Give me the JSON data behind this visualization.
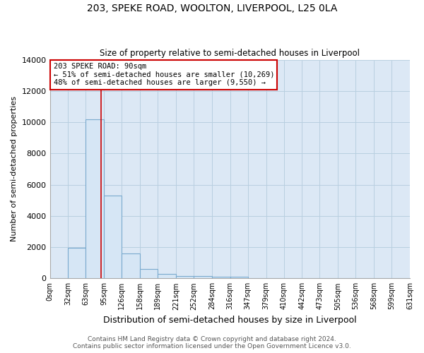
{
  "title": "203, SPEKE ROAD, WOOLTON, LIVERPOOL, L25 0LA",
  "subtitle": "Size of property relative to semi-detached houses in Liverpool",
  "xlabel": "Distribution of semi-detached houses by size in Liverpool",
  "ylabel": "Number of semi-detached properties",
  "bin_edges": [
    0,
    32,
    63,
    95,
    126,
    158,
    189,
    221,
    252,
    284,
    316,
    347,
    379,
    410,
    442,
    473,
    505,
    536,
    568,
    599,
    631
  ],
  "bar_heights": [
    0,
    1950,
    10200,
    5300,
    1600,
    620,
    270,
    160,
    135,
    95,
    115,
    0,
    0,
    0,
    0,
    0,
    0,
    0,
    0,
    0
  ],
  "bar_color": "#d6e6f5",
  "bar_edge_color": "#7aaace",
  "property_line_x": 90,
  "property_line_color": "#cc0000",
  "annotation_title": "203 SPEKE ROAD: 90sqm",
  "annotation_line1": "← 51% of semi-detached houses are smaller (10,269)",
  "annotation_line2": "48% of semi-detached houses are larger (9,550) →",
  "annotation_box_color": "#ffffff",
  "annotation_box_edge": "#cc0000",
  "ylim": [
    0,
    14000
  ],
  "yticks": [
    0,
    2000,
    4000,
    6000,
    8000,
    10000,
    12000,
    14000
  ],
  "tick_labels": [
    "0sqm",
    "32sqm",
    "63sqm",
    "95sqm",
    "126sqm",
    "158sqm",
    "189sqm",
    "221sqm",
    "252sqm",
    "284sqm",
    "316sqm",
    "347sqm",
    "379sqm",
    "410sqm",
    "442sqm",
    "473sqm",
    "505sqm",
    "536sqm",
    "568sqm",
    "599sqm",
    "631sqm"
  ],
  "footer_line1": "Contains HM Land Registry data © Crown copyright and database right 2024.",
  "footer_line2": "Contains public sector information licensed under the Open Government Licence v3.0.",
  "bg_color": "#ffffff",
  "plot_bg_color": "#dce8f5",
  "grid_color": "#b8cfe0"
}
